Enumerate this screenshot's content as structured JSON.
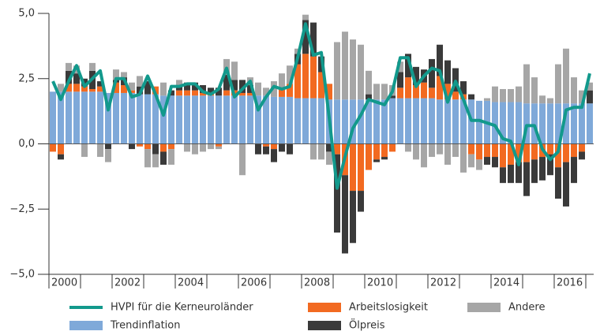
{
  "chart_data": {
    "type": "bar",
    "stacked": true,
    "categories": [
      "2000",
      null,
      null,
      null,
      null,
      null,
      null,
      null,
      "2002",
      null,
      null,
      null,
      null,
      null,
      null,
      null,
      "2004",
      null,
      null,
      null,
      null,
      null,
      null,
      null,
      "2006",
      null,
      null,
      null,
      null,
      null,
      null,
      null,
      "2008",
      null,
      null,
      null,
      null,
      null,
      null,
      null,
      "2010",
      null,
      null,
      null,
      null,
      null,
      null,
      null,
      "2012",
      null,
      null,
      null,
      null,
      null,
      null,
      null,
      "2014",
      null,
      null,
      null,
      null,
      null,
      null,
      null,
      "2016",
      null,
      null,
      null,
      null
    ],
    "series": [
      {
        "name": "Trendinflation",
        "color": "#7fa9d9",
        "values": [
          2.0,
          2.0,
          2.0,
          2.0,
          2.0,
          2.0,
          2.0,
          1.95,
          1.95,
          1.95,
          1.95,
          1.9,
          1.9,
          1.9,
          1.85,
          1.85,
          1.85,
          1.85,
          1.85,
          1.85,
          1.85,
          1.85,
          1.85,
          1.85,
          1.85,
          1.85,
          1.85,
          1.85,
          1.8,
          1.8,
          1.8,
          1.75,
          1.75,
          1.75,
          1.75,
          1.7,
          1.7,
          1.7,
          1.7,
          1.7,
          1.7,
          1.7,
          1.7,
          1.75,
          1.75,
          1.75,
          1.75,
          1.75,
          1.75,
          1.7,
          1.7,
          1.7,
          1.7,
          1.7,
          1.65,
          1.65,
          1.6,
          1.6,
          1.6,
          1.6,
          1.55,
          1.55,
          1.55,
          1.55,
          1.55,
          1.55,
          1.55,
          1.55,
          1.55
        ]
      },
      {
        "name": "Arbeitslosigkeit",
        "color": "#f26a21",
        "values": [
          -0.3,
          -0.4,
          0.3,
          0.3,
          0.2,
          0.1,
          0.2,
          0.0,
          0.4,
          0.3,
          0.1,
          -0.1,
          -0.2,
          0.3,
          -0.3,
          -0.2,
          0.2,
          0.2,
          0.2,
          0.1,
          0.1,
          -0.1,
          0.2,
          0.2,
          0.1,
          0.1,
          0.0,
          -0.1,
          -0.2,
          0.3,
          0.5,
          1.3,
          1.7,
          1.6,
          1.0,
          0.6,
          -0.4,
          -1.2,
          -1.8,
          -1.8,
          -1.0,
          -0.6,
          -0.5,
          -0.3,
          0.4,
          0.8,
          0.5,
          0.6,
          0.4,
          0.9,
          0.6,
          0.3,
          0.2,
          -0.4,
          -0.6,
          -0.5,
          -0.5,
          -0.9,
          -0.8,
          -0.7,
          -0.7,
          -0.6,
          -0.5,
          -0.4,
          -0.9,
          -0.7,
          -0.5,
          -0.3,
          0.0
        ]
      },
      {
        "name": "Ölpreis",
        "color": "#3a3a3a",
        "values": [
          0,
          -0.2,
          0.5,
          0.4,
          0.3,
          0.7,
          0.2,
          -0.2,
          0.1,
          0.3,
          -0.2,
          0.3,
          0.5,
          -0.4,
          -0.5,
          0.2,
          0.2,
          0.3,
          0.3,
          0.3,
          0.2,
          0.3,
          0.6,
          0.4,
          0.5,
          0.3,
          -0.4,
          -0.3,
          -0.5,
          -0.3,
          -0.4,
          0.4,
          1.3,
          1.3,
          0.6,
          -0.3,
          -3.0,
          -3.0,
          -2.0,
          -0.8,
          0.2,
          -0.1,
          -0.1,
          0.1,
          0.6,
          0.9,
          0.7,
          0.5,
          1.1,
          1.2,
          0.9,
          0.9,
          0.5,
          0.2,
          0.0,
          -0.3,
          -0.4,
          -0.6,
          -0.7,
          -0.8,
          -1.3,
          -0.9,
          -0.9,
          -0.8,
          -1.2,
          -1.7,
          -1.0,
          -0.3,
          0.5
        ]
      },
      {
        "name": "Andere",
        "color": "#a6a6a6",
        "values": [
          0,
          0.3,
          0.3,
          0.3,
          -0.5,
          0.3,
          -0.5,
          -0.5,
          0.4,
          0.2,
          0.3,
          0.4,
          -0.7,
          -0.5,
          0.5,
          -0.6,
          0.2,
          -0.3,
          -0.4,
          -0.3,
          -0.2,
          -0.1,
          0.6,
          0.7,
          -1.2,
          0.3,
          0.5,
          0.3,
          0.6,
          0.6,
          0.7,
          0.2,
          0.2,
          -0.6,
          -0.6,
          -0.5,
          2.2,
          2.6,
          2.3,
          2.1,
          0.9,
          0.6,
          0.6,
          0.4,
          0.4,
          -0.3,
          -0.6,
          -0.9,
          -0.5,
          -0.4,
          -0.8,
          -0.5,
          -1.1,
          -0.5,
          -0.4,
          0.1,
          0.6,
          0.5,
          0.5,
          0.6,
          1.5,
          1.0,
          0.3,
          0.2,
          1.5,
          2.1,
          1.0,
          0.5,
          0.3
        ]
      }
    ],
    "line": {
      "name": "HVPI für die Kerneuroländer",
      "color": "#12998c",
      "values": [
        2.4,
        1.7,
        2.4,
        3.0,
        2.2,
        2.5,
        2.8,
        1.3,
        2.5,
        2.5,
        1.8,
        1.9,
        2.6,
        1.9,
        1.1,
        2.2,
        2.2,
        2.3,
        2.3,
        2.0,
        1.9,
        2.1,
        2.9,
        1.8,
        2.1,
        2.4,
        1.3,
        1.8,
        2.2,
        2.1,
        2.2,
        3.3,
        4.6,
        3.4,
        3.5,
        1.0,
        -1.7,
        -0.5,
        0.6,
        1.1,
        1.7,
        1.6,
        1.5,
        2.0,
        3.3,
        3.3,
        2.2,
        2.6,
        2.9,
        2.8,
        1.6,
        2.4,
        1.7,
        0.9,
        0.9,
        0.8,
        0.7,
        0.2,
        0.1,
        -0.8,
        0.7,
        0.7,
        -0.2,
        -0.6,
        -0.3,
        1.3,
        1.4,
        1.4,
        2.7
      ]
    },
    "ylim": [
      -5,
      5
    ],
    "yticks": [
      {
        "value": -5,
        "label": "−5,0"
      },
      {
        "value": -2.5,
        "label": "−2,5"
      },
      {
        "value": 0,
        "label": "0,0"
      },
      {
        "value": 2.5,
        "label": "2,5"
      },
      {
        "value": 5,
        "label": "5,0"
      }
    ],
    "grid": false
  }
}
